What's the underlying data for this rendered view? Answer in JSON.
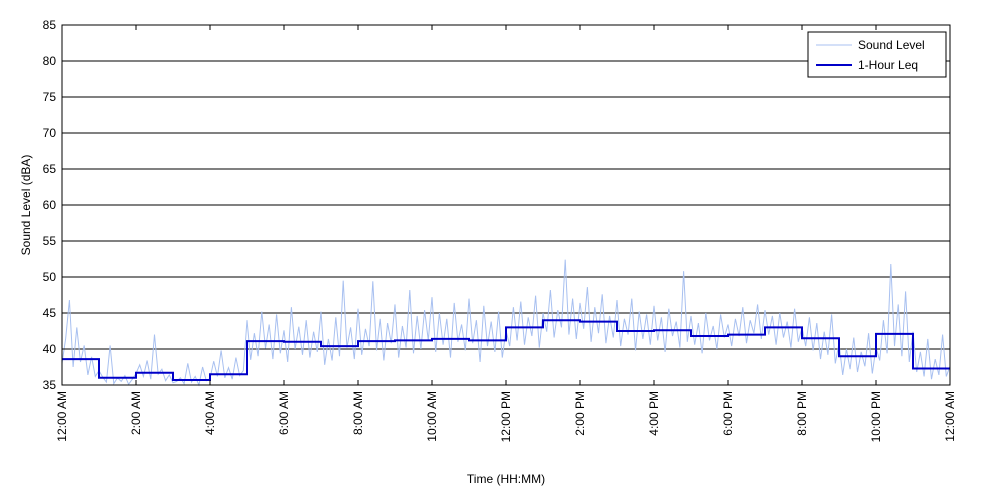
{
  "chart_data": {
    "type": "line",
    "title": "",
    "xlabel": "Time (HH:MM)",
    "ylabel": "Sound Level (dBA)",
    "ylim": [
      35,
      85
    ],
    "xlim": [
      0,
      24
    ],
    "y_ticks": [
      35,
      40,
      45,
      50,
      55,
      60,
      65,
      70,
      75,
      80,
      85
    ],
    "x_tick_labels": [
      "12:00 AM",
      "2:00 AM",
      "4:00 AM",
      "6:00 AM",
      "8:00 AM",
      "10:00 AM",
      "12:00 PM",
      "2:00 PM",
      "4:00 PM",
      "6:00 PM",
      "8:00 PM",
      "10:00 PM",
      "12:00 AM"
    ],
    "grid": "horizontal",
    "legend_position": "top-right",
    "colors": {
      "sound_level": "#a8c0f0",
      "leq": "#0000c8"
    },
    "series": [
      {
        "name": "Sound Level",
        "style": "thin-line",
        "points": [
          [
            0.0,
            38.0
          ],
          [
            0.1,
            41.5
          ],
          [
            0.2,
            46.8
          ],
          [
            0.3,
            37.5
          ],
          [
            0.4,
            43.0
          ],
          [
            0.5,
            38.2
          ],
          [
            0.6,
            40.5
          ],
          [
            0.7,
            36.4
          ],
          [
            0.8,
            38.9
          ],
          [
            0.9,
            36.2
          ],
          [
            1.0,
            37.0
          ],
          [
            1.1,
            36.1
          ],
          [
            1.2,
            35.4
          ],
          [
            1.3,
            40.5
          ],
          [
            1.4,
            35.2
          ],
          [
            1.5,
            36.0
          ],
          [
            1.6,
            35.5
          ],
          [
            1.7,
            36.3
          ],
          [
            1.8,
            35.1
          ],
          [
            1.9,
            35.8
          ],
          [
            2.0,
            36.6
          ],
          [
            2.1,
            37.8
          ],
          [
            2.2,
            36.2
          ],
          [
            2.3,
            38.4
          ],
          [
            2.4,
            35.8
          ],
          [
            2.5,
            42.0
          ],
          [
            2.6,
            36.5
          ],
          [
            2.7,
            37.2
          ],
          [
            2.8,
            35.6
          ],
          [
            2.9,
            36.4
          ],
          [
            3.0,
            35.3
          ],
          [
            3.1,
            35.5
          ],
          [
            3.2,
            36.0
          ],
          [
            3.3,
            35.2
          ],
          [
            3.4,
            38.0
          ],
          [
            3.5,
            35.4
          ],
          [
            3.6,
            36.2
          ],
          [
            3.7,
            35.0
          ],
          [
            3.8,
            37.5
          ],
          [
            3.9,
            35.6
          ],
          [
            4.0,
            35.9
          ],
          [
            4.1,
            38.3
          ],
          [
            4.2,
            36.2
          ],
          [
            4.3,
            39.8
          ],
          [
            4.4,
            36.0
          ],
          [
            4.5,
            37.4
          ],
          [
            4.6,
            35.8
          ],
          [
            4.7,
            38.8
          ],
          [
            4.8,
            36.3
          ],
          [
            4.9,
            37.0
          ],
          [
            5.0,
            44.0
          ],
          [
            5.1,
            38.5
          ],
          [
            5.2,
            42.2
          ],
          [
            5.3,
            39.0
          ],
          [
            5.4,
            45.2
          ],
          [
            5.5,
            40.1
          ],
          [
            5.6,
            43.4
          ],
          [
            5.7,
            38.6
          ],
          [
            5.8,
            44.8
          ],
          [
            5.9,
            39.4
          ],
          [
            6.0,
            42.6
          ],
          [
            6.1,
            38.2
          ],
          [
            6.2,
            45.8
          ],
          [
            6.3,
            40.0
          ],
          [
            6.4,
            43.1
          ],
          [
            6.5,
            39.2
          ],
          [
            6.6,
            44.0
          ],
          [
            6.7,
            38.8
          ],
          [
            6.8,
            42.4
          ],
          [
            6.9,
            39.6
          ],
          [
            7.0,
            45.2
          ],
          [
            7.1,
            37.8
          ],
          [
            7.2,
            41.4
          ],
          [
            7.3,
            38.4
          ],
          [
            7.4,
            44.4
          ],
          [
            7.5,
            39.0
          ],
          [
            7.6,
            49.5
          ],
          [
            7.7,
            40.2
          ],
          [
            7.8,
            43.0
          ],
          [
            7.9,
            38.6
          ],
          [
            8.0,
            45.6
          ],
          [
            8.1,
            39.2
          ],
          [
            8.2,
            42.8
          ],
          [
            8.3,
            40.4
          ],
          [
            8.4,
            49.4
          ],
          [
            8.5,
            39.8
          ],
          [
            8.6,
            44.2
          ],
          [
            8.7,
            38.4
          ],
          [
            8.8,
            43.6
          ],
          [
            8.9,
            40.8
          ],
          [
            9.0,
            46.2
          ],
          [
            9.1,
            38.8
          ],
          [
            9.2,
            43.2
          ],
          [
            9.3,
            40.2
          ],
          [
            9.4,
            48.2
          ],
          [
            9.5,
            39.4
          ],
          [
            9.6,
            44.6
          ],
          [
            9.7,
            40.0
          ],
          [
            9.8,
            45.4
          ],
          [
            9.9,
            41.2
          ],
          [
            10.0,
            47.2
          ],
          [
            10.1,
            39.6
          ],
          [
            10.2,
            45.0
          ],
          [
            10.3,
            40.6
          ],
          [
            10.4,
            44.2
          ],
          [
            10.5,
            38.8
          ],
          [
            10.6,
            46.4
          ],
          [
            10.7,
            41.0
          ],
          [
            10.8,
            43.4
          ],
          [
            10.9,
            39.8
          ],
          [
            11.0,
            47.0
          ],
          [
            11.1,
            40.8
          ],
          [
            11.2,
            44.0
          ],
          [
            11.3,
            38.2
          ],
          [
            11.4,
            46.0
          ],
          [
            11.5,
            40.4
          ],
          [
            11.6,
            43.8
          ],
          [
            11.7,
            39.6
          ],
          [
            11.8,
            45.2
          ],
          [
            11.9,
            38.8
          ],
          [
            12.0,
            42.6
          ],
          [
            12.1,
            40.4
          ],
          [
            12.2,
            45.8
          ],
          [
            12.3,
            41.2
          ],
          [
            12.4,
            46.6
          ],
          [
            12.5,
            40.6
          ],
          [
            12.6,
            44.4
          ],
          [
            12.7,
            41.8
          ],
          [
            12.8,
            47.4
          ],
          [
            12.9,
            40.2
          ],
          [
            13.0,
            45.0
          ],
          [
            13.1,
            42.4
          ],
          [
            13.2,
            48.2
          ],
          [
            13.3,
            41.6
          ],
          [
            13.4,
            45.4
          ],
          [
            13.5,
            43.0
          ],
          [
            13.6,
            52.4
          ],
          [
            13.7,
            42.0
          ],
          [
            13.8,
            47.0
          ],
          [
            13.9,
            41.4
          ],
          [
            14.0,
            46.4
          ],
          [
            14.1,
            42.8
          ],
          [
            14.2,
            48.6
          ],
          [
            14.3,
            41.0
          ],
          [
            14.4,
            45.8
          ],
          [
            14.5,
            42.2
          ],
          [
            14.6,
            47.6
          ],
          [
            14.7,
            40.8
          ],
          [
            14.8,
            44.6
          ],
          [
            14.9,
            41.6
          ],
          [
            15.0,
            46.8
          ],
          [
            15.1,
            40.4
          ],
          [
            15.2,
            44.2
          ],
          [
            15.3,
            42.0
          ],
          [
            15.4,
            47.0
          ],
          [
            15.5,
            39.8
          ],
          [
            15.6,
            45.2
          ],
          [
            15.7,
            41.4
          ],
          [
            15.8,
            44.8
          ],
          [
            15.9,
            40.6
          ],
          [
            16.0,
            46.0
          ],
          [
            16.1,
            41.2
          ],
          [
            16.2,
            44.4
          ],
          [
            16.3,
            39.6
          ],
          [
            16.4,
            45.6
          ],
          [
            16.5,
            41.8
          ],
          [
            16.6,
            43.8
          ],
          [
            16.7,
            40.2
          ],
          [
            16.8,
            50.8
          ],
          [
            16.9,
            41.0
          ],
          [
            17.0,
            44.6
          ],
          [
            17.1,
            40.6
          ],
          [
            17.2,
            43.6
          ],
          [
            17.3,
            39.4
          ],
          [
            17.4,
            45.0
          ],
          [
            17.5,
            41.2
          ],
          [
            17.6,
            43.2
          ],
          [
            17.7,
            40.0
          ],
          [
            17.8,
            44.8
          ],
          [
            17.9,
            41.6
          ],
          [
            18.0,
            43.4
          ],
          [
            18.1,
            40.4
          ],
          [
            18.2,
            44.2
          ],
          [
            18.3,
            41.8
          ],
          [
            18.4,
            45.8
          ],
          [
            18.5,
            40.8
          ],
          [
            18.6,
            44.0
          ],
          [
            18.7,
            42.2
          ],
          [
            18.8,
            46.2
          ],
          [
            18.9,
            41.4
          ],
          [
            19.0,
            45.4
          ],
          [
            19.1,
            42.0
          ],
          [
            19.2,
            44.6
          ],
          [
            19.3,
            40.6
          ],
          [
            19.4,
            45.0
          ],
          [
            19.5,
            41.6
          ],
          [
            19.6,
            43.8
          ],
          [
            19.7,
            40.2
          ],
          [
            19.8,
            45.6
          ],
          [
            19.9,
            41.0
          ],
          [
            20.0,
            43.0
          ],
          [
            20.1,
            40.4
          ],
          [
            20.2,
            44.4
          ],
          [
            20.3,
            39.8
          ],
          [
            20.4,
            43.6
          ],
          [
            20.5,
            38.6
          ],
          [
            20.6,
            42.4
          ],
          [
            20.7,
            39.2
          ],
          [
            20.8,
            44.8
          ],
          [
            20.9,
            38.0
          ],
          [
            21.0,
            40.8
          ],
          [
            21.1,
            36.4
          ],
          [
            21.2,
            40.0
          ],
          [
            21.3,
            37.2
          ],
          [
            21.4,
            41.6
          ],
          [
            21.5,
            36.8
          ],
          [
            21.6,
            39.6
          ],
          [
            21.7,
            37.6
          ],
          [
            21.8,
            42.2
          ],
          [
            21.9,
            36.6
          ],
          [
            22.0,
            40.2
          ],
          [
            22.1,
            38.4
          ],
          [
            22.2,
            44.0
          ],
          [
            22.3,
            39.4
          ],
          [
            22.4,
            51.8
          ],
          [
            22.5,
            40.4
          ],
          [
            22.6,
            46.2
          ],
          [
            22.7,
            39.0
          ],
          [
            22.8,
            48.0
          ],
          [
            22.9,
            38.2
          ],
          [
            23.0,
            42.4
          ],
          [
            23.1,
            36.8
          ],
          [
            23.2,
            39.6
          ],
          [
            23.3,
            36.2
          ],
          [
            23.4,
            41.4
          ],
          [
            23.5,
            35.8
          ],
          [
            23.6,
            38.6
          ],
          [
            23.7,
            36.4
          ],
          [
            23.8,
            42.0
          ],
          [
            23.9,
            36.2
          ],
          [
            24.0,
            37.6
          ]
        ]
      },
      {
        "name": "1-Hour Leq",
        "style": "step",
        "hourly_values": [
          38.6,
          36.0,
          36.7,
          35.7,
          36.5,
          41.1,
          41.0,
          40.4,
          41.1,
          41.2,
          41.4,
          41.2,
          43.0,
          44.0,
          43.8,
          42.5,
          42.6,
          41.8,
          42.0,
          43.0,
          41.5,
          39.0,
          42.1,
          37.3
        ]
      }
    ]
  }
}
